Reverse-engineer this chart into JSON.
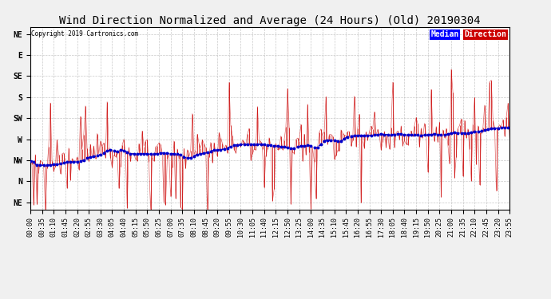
{
  "title": "Wind Direction Normalized and Average (24 Hours) (Old) 20190304",
  "copyright": "Copyright 2019 Cartronics.com",
  "legend_median_text": "Median",
  "legend_direction_text": "Direction",
  "legend_median_bg": "#0000ff",
  "legend_direction_bg": "#cc0000",
  "y_labels": [
    "NE",
    "N",
    "NW",
    "W",
    "SW",
    "S",
    "SE",
    "E",
    "NE"
  ],
  "y_ticks": [
    405,
    360,
    315,
    270,
    225,
    180,
    135,
    90,
    45
  ],
  "y_min": 30,
  "y_max": 420,
  "background_color": "#f0f0f0",
  "plot_bg": "#ffffff",
  "red_line_color": "#cc0000",
  "blue_line_color": "#0000cc",
  "grid_color": "#bbbbbb",
  "title_fontsize": 10,
  "tick_fontsize": 7,
  "num_points": 288
}
